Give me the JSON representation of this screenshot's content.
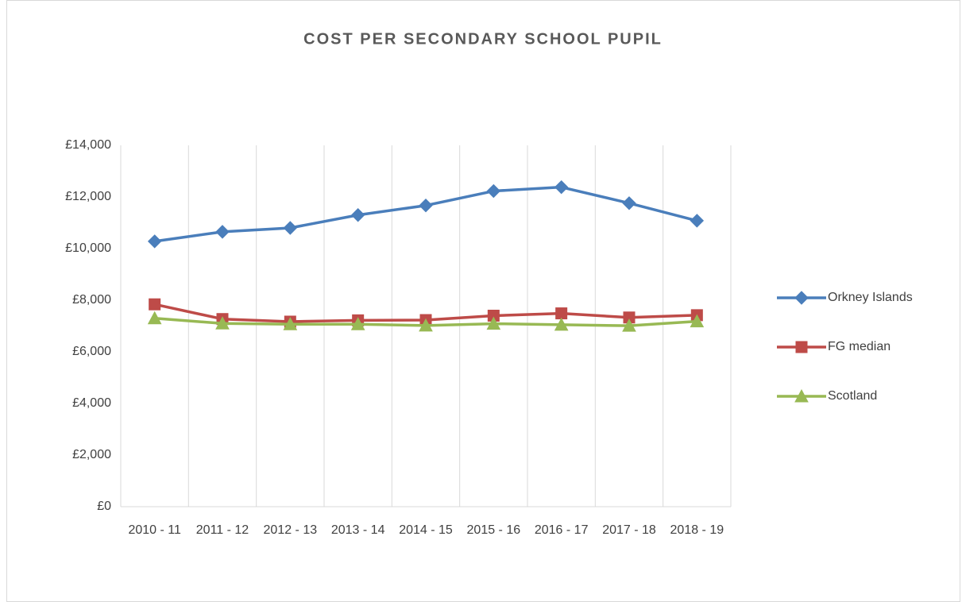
{
  "chart_data": {
    "type": "line",
    "title": "COST PER  SECONDARY SCHOOL  PUPIL",
    "categories": [
      "2010 - 11",
      "2011 - 12",
      "2012 - 13",
      "2013 - 14",
      "2014 - 15",
      "2015 - 16",
      "2016 - 17",
      "2017 - 18",
      "2018 - 19"
    ],
    "series": [
      {
        "name": "Orkney Islands",
        "color": "#4a7ebb",
        "marker": "diamond",
        "values": [
          10280,
          10650,
          10800,
          11300,
          11670,
          12230,
          12380,
          11760,
          11080
        ]
      },
      {
        "name": "FG median",
        "color": "#be4b48",
        "marker": "square",
        "values": [
          7840,
          7270,
          7170,
          7220,
          7230,
          7400,
          7490,
          7330,
          7420
        ]
      },
      {
        "name": "Scotland",
        "color": "#98b954",
        "marker": "triangle",
        "values": [
          7300,
          7100,
          7070,
          7070,
          7020,
          7090,
          7050,
          7010,
          7180
        ]
      }
    ],
    "ylim": [
      0,
      14000
    ],
    "yticks": [
      {
        "value": 0,
        "label": "£0"
      },
      {
        "value": 2000,
        "label": "£2,000"
      },
      {
        "value": 4000,
        "label": "£4,000"
      },
      {
        "value": 6000,
        "label": "£6,000"
      },
      {
        "value": 8000,
        "label": "£8,000"
      },
      {
        "value": 10000,
        "label": "£10,000"
      },
      {
        "value": 12000,
        "label": "£12,000"
      },
      {
        "value": 14000,
        "label": "£14,000"
      }
    ],
    "grid": "x",
    "legend": "right"
  }
}
